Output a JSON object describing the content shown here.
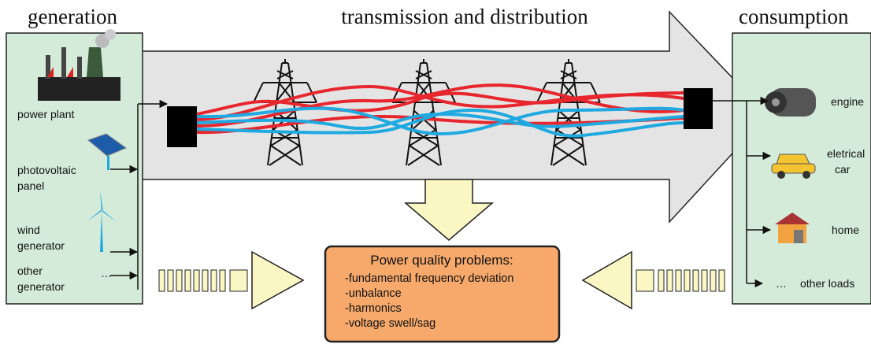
{
  "header": {
    "left": "generation",
    "center": "transmission and distribution",
    "right": "consumption"
  },
  "generation": [
    {
      "lines": [
        "power plant"
      ]
    },
    {
      "lines": [
        "photovoltaic",
        "panel"
      ]
    },
    {
      "lines": [
        "wind",
        "generator"
      ]
    },
    {
      "lines": [
        "other",
        "generator"
      ]
    }
  ],
  "generation_more": "…",
  "consumption": [
    {
      "lines": [
        "engine"
      ]
    },
    {
      "lines": [
        "eletrical",
        "car"
      ]
    },
    {
      "lines": [
        "home"
      ]
    }
  ],
  "consumption_more": {
    "dots": "…",
    "label": "other loads"
  },
  "problems": {
    "title": "Power quality problems:",
    "items": [
      "-fundamental frequency deviation",
      "-unbalance",
      "-harmonics",
      "-voltage swell/sag"
    ]
  }
}
